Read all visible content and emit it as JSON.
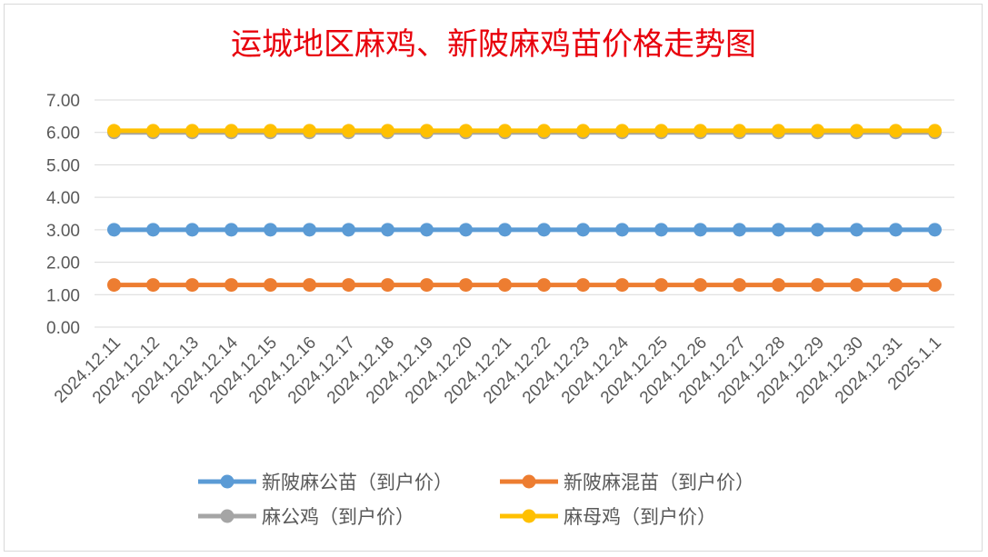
{
  "chart_data": {
    "type": "line",
    "title": "运城地区麻鸡、新陂麻鸡苗价格走势图",
    "categories": [
      "2024.12.11",
      "2024.12.12",
      "2024.12.13",
      "2024.12.14",
      "2024.12.15",
      "2024.12.16",
      "2024.12.17",
      "2024.12.18",
      "2024.12.19",
      "2024.12.20",
      "2024.12.21",
      "2024.12.22",
      "2024.12.23",
      "2024.12.24",
      "2024.12.25",
      "2024.12.26",
      "2024.12.27",
      "2024.12.28",
      "2024.12.29",
      "2024.12.30",
      "2024.12.31",
      "2025.1.1"
    ],
    "y_ticks": [
      "0.00",
      "1.00",
      "2.00",
      "3.00",
      "4.00",
      "5.00",
      "6.00",
      "7.00"
    ],
    "ylim": [
      0,
      7
    ],
    "grid": true,
    "legend_position": "bottom",
    "series": [
      {
        "name": "新陂麻公苗（到户价）",
        "color": "#5b9bd5",
        "values": [
          3,
          3,
          3,
          3,
          3,
          3,
          3,
          3,
          3,
          3,
          3,
          3,
          3,
          3,
          3,
          3,
          3,
          3,
          3,
          3,
          3,
          3
        ]
      },
      {
        "name": "新陂麻混苗（到户价）",
        "color": "#ed7d31",
        "values": [
          1.3,
          1.3,
          1.3,
          1.3,
          1.3,
          1.3,
          1.3,
          1.3,
          1.3,
          1.3,
          1.3,
          1.3,
          1.3,
          1.3,
          1.3,
          1.3,
          1.3,
          1.3,
          1.3,
          1.3,
          1.3,
          1.3
        ]
      },
      {
        "name": "麻公鸡（到户价）",
        "color": "#a5a5a5",
        "values": [
          6,
          6,
          6,
          6,
          6,
          6,
          6,
          6,
          6,
          6,
          6,
          6,
          6,
          6,
          6,
          6,
          6,
          6,
          6,
          6,
          6,
          6
        ]
      },
      {
        "name": "麻母鸡（到户价）",
        "color": "#ffc000",
        "values": [
          6.05,
          6.05,
          6.05,
          6.05,
          6.05,
          6.05,
          6.05,
          6.05,
          6.05,
          6.05,
          6.05,
          6.05,
          6.05,
          6.05,
          6.05,
          6.05,
          6.05,
          6.05,
          6.05,
          6.05,
          6.05,
          6.05
        ]
      }
    ]
  }
}
